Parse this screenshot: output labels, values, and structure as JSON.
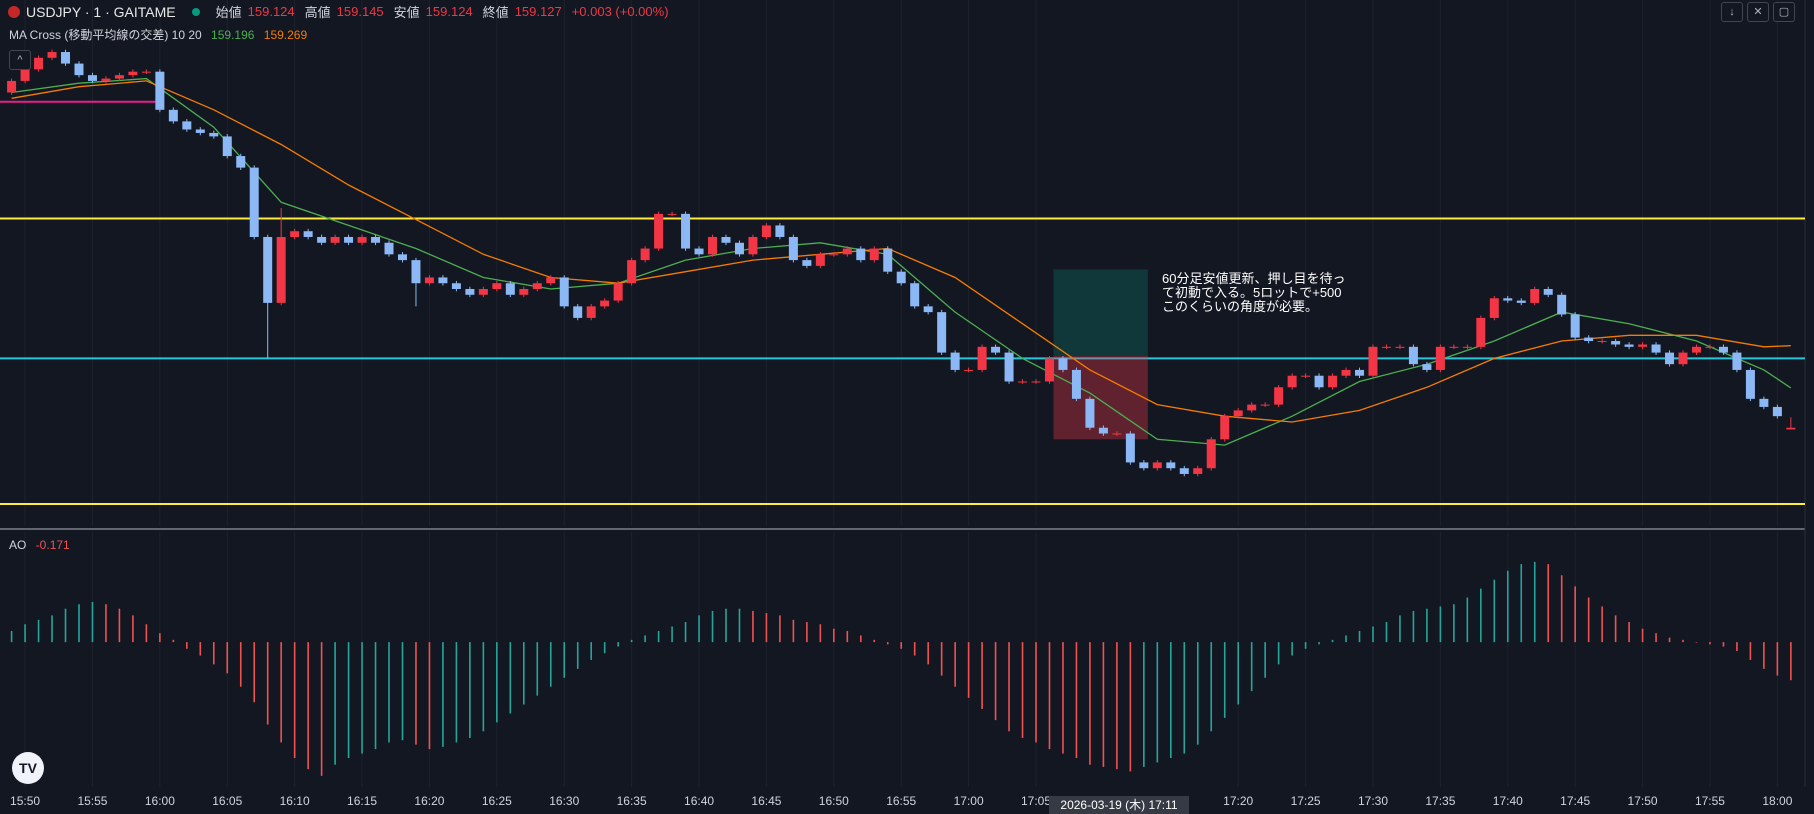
{
  "chart_data": [
    {
      "type": "candlestick",
      "title": "USDJPY · 1 · GAITAME",
      "ohlc_labels": [
        "始値",
        "高値",
        "安値",
        "終値"
      ],
      "change": "+0.003 (+0.00%)",
      "indicator": "MA Cross (移動平均線の交差) 10 20",
      "annotation": [
        "60分足安値更新、押し目を待っ",
        "て初動で入る。5ロットで+500",
        "このくらいの角度が必要。"
      ],
      "crosshair_label": "2026-03-19 (木)   17:11",
      "colors": {
        "up": "#f23645",
        "down": "#8cb8f5"
      },
      "xlim": [
        -0.86,
        133.05
      ],
      "ylim": [
        158.957,
        159.867
      ],
      "xticks": [
        {
          "value": 1,
          "label": "15:50"
        },
        {
          "value": 6,
          "label": "15:55"
        },
        {
          "value": 11,
          "label": "16:00"
        },
        {
          "value": 16,
          "label": "16:05"
        },
        {
          "value": 21,
          "label": "16:10"
        },
        {
          "value": 26,
          "label": "16:15"
        },
        {
          "value": 31,
          "label": "16:20"
        },
        {
          "value": 36,
          "label": "16:25"
        },
        {
          "value": 41,
          "label": "16:30"
        },
        {
          "value": 46,
          "label": "16:35"
        },
        {
          "value": 51,
          "label": "16:40"
        },
        {
          "value": 56,
          "label": "16:45"
        },
        {
          "value": 61,
          "label": "16:50"
        },
        {
          "value": 66,
          "label": "16:55"
        },
        {
          "value": 71,
          "label": "17:00"
        },
        {
          "value": 76,
          "label": "17:05"
        },
        {
          "value": 91,
          "label": "17:20"
        },
        {
          "value": 96,
          "label": "17:25"
        },
        {
          "value": 101,
          "label": "17:30"
        },
        {
          "value": 106,
          "label": "17:35"
        },
        {
          "value": 111,
          "label": "17:40"
        },
        {
          "value": 116,
          "label": "17:45"
        },
        {
          "value": 121,
          "label": "17:50"
        },
        {
          "value": 126,
          "label": "17:55"
        },
        {
          "value": 131,
          "label": "18:00"
        }
      ],
      "open": [
        159.707,
        159.727,
        159.747,
        159.767,
        159.777,
        159.757,
        159.737,
        159.727,
        159.731,
        159.737,
        159.743,
        159.743,
        159.677,
        159.657,
        159.643,
        159.637,
        159.631,
        159.597,
        159.577,
        159.457,
        159.343,
        159.457,
        159.467,
        159.457,
        159.447,
        159.457,
        159.447,
        159.457,
        159.447,
        159.427,
        159.417,
        159.377,
        159.387,
        159.377,
        159.367,
        159.357,
        159.367,
        159.377,
        159.357,
        159.367,
        159.377,
        159.387,
        159.337,
        159.317,
        159.337,
        159.347,
        159.377,
        159.417,
        159.437,
        159.497,
        159.497,
        159.437,
        159.427,
        159.457,
        159.447,
        159.427,
        159.457,
        159.477,
        159.457,
        159.417,
        159.407,
        159.427,
        159.427,
        159.437,
        159.417,
        159.437,
        159.397,
        159.377,
        159.337,
        159.327,
        159.257,
        159.227,
        159.227,
        159.267,
        159.257,
        159.207,
        159.207,
        159.207,
        159.247,
        159.227,
        159.177,
        159.127,
        159.117,
        159.117,
        159.067,
        159.057,
        159.067,
        159.057,
        159.047,
        159.057,
        159.107,
        159.147,
        159.157,
        159.167,
        159.167,
        159.197,
        159.217,
        159.217,
        159.197,
        159.217,
        159.227,
        159.217,
        159.267,
        159.267,
        159.267,
        159.237,
        159.227,
        159.267,
        159.267,
        159.267,
        159.317,
        159.351,
        159.347,
        159.343,
        159.367,
        159.357,
        159.323,
        159.283,
        159.277,
        159.277,
        159.271,
        159.267,
        159.271,
        159.257,
        159.237,
        159.257,
        159.267,
        159.267,
        159.257,
        159.227,
        159.177,
        159.163,
        159.124
      ],
      "high": [
        159.731,
        159.751,
        159.771,
        159.781,
        159.781,
        159.761,
        159.741,
        159.735,
        159.741,
        159.747,
        159.747,
        159.747,
        159.681,
        159.661,
        159.647,
        159.641,
        159.635,
        159.601,
        159.581,
        159.461,
        159.507,
        159.471,
        159.471,
        159.461,
        159.461,
        159.461,
        159.461,
        159.461,
        159.451,
        159.431,
        159.421,
        159.391,
        159.391,
        159.381,
        159.371,
        159.371,
        159.381,
        159.381,
        159.371,
        159.381,
        159.391,
        159.391,
        159.341,
        159.341,
        159.351,
        159.381,
        159.421,
        159.441,
        159.501,
        159.501,
        159.501,
        159.441,
        159.461,
        159.461,
        159.451,
        159.461,
        159.481,
        159.481,
        159.461,
        159.421,
        159.431,
        159.431,
        159.441,
        159.441,
        159.441,
        159.441,
        159.401,
        159.381,
        159.341,
        159.331,
        159.261,
        159.231,
        159.271,
        159.271,
        159.261,
        159.211,
        159.211,
        159.251,
        159.251,
        159.231,
        159.181,
        159.131,
        159.121,
        159.121,
        159.071,
        159.071,
        159.071,
        159.061,
        159.061,
        159.111,
        159.151,
        159.161,
        159.171,
        159.171,
        159.201,
        159.221,
        159.221,
        159.221,
        159.221,
        159.231,
        159.231,
        159.271,
        159.271,
        159.271,
        159.271,
        159.241,
        159.271,
        159.271,
        159.271,
        159.321,
        159.355,
        159.355,
        159.351,
        159.371,
        159.371,
        159.361,
        159.327,
        159.287,
        159.281,
        159.281,
        159.275,
        159.275,
        159.275,
        159.261,
        159.261,
        159.271,
        159.271,
        159.271,
        159.261,
        159.231,
        159.181,
        159.167,
        159.145
      ],
      "low": [
        159.703,
        159.723,
        159.743,
        159.763,
        159.753,
        159.733,
        159.723,
        159.723,
        159.727,
        159.733,
        159.739,
        159.673,
        159.653,
        159.639,
        159.633,
        159.627,
        159.593,
        159.573,
        159.453,
        159.247,
        159.339,
        159.453,
        159.453,
        159.443,
        159.443,
        159.443,
        159.443,
        159.443,
        159.423,
        159.413,
        159.337,
        159.373,
        159.373,
        159.363,
        159.353,
        159.353,
        159.363,
        159.353,
        159.353,
        159.363,
        159.373,
        159.333,
        159.313,
        159.313,
        159.333,
        159.343,
        159.373,
        159.413,
        159.433,
        159.493,
        159.433,
        159.423,
        159.423,
        159.443,
        159.423,
        159.423,
        159.453,
        159.453,
        159.413,
        159.403,
        159.403,
        159.423,
        159.423,
        159.413,
        159.413,
        159.393,
        159.373,
        159.333,
        159.323,
        159.253,
        159.223,
        159.223,
        159.223,
        159.253,
        159.203,
        159.203,
        159.203,
        159.203,
        159.223,
        159.173,
        159.123,
        159.113,
        159.113,
        159.063,
        159.053,
        159.053,
        159.053,
        159.043,
        159.043,
        159.053,
        159.103,
        159.143,
        159.153,
        159.163,
        159.163,
        159.193,
        159.213,
        159.193,
        159.193,
        159.213,
        159.213,
        159.213,
        159.263,
        159.263,
        159.233,
        159.223,
        159.223,
        159.263,
        159.263,
        159.263,
        159.313,
        159.343,
        159.339,
        159.339,
        159.353,
        159.319,
        159.279,
        159.273,
        159.273,
        159.267,
        159.263,
        159.263,
        159.253,
        159.233,
        159.233,
        159.253,
        159.263,
        159.253,
        159.223,
        159.173,
        159.159,
        159.143,
        159.124
      ],
      "close": [
        159.727,
        159.747,
        159.767,
        159.777,
        159.757,
        159.737,
        159.727,
        159.731,
        159.737,
        159.743,
        159.743,
        159.677,
        159.657,
        159.643,
        159.637,
        159.631,
        159.597,
        159.577,
        159.457,
        159.343,
        159.457,
        159.467,
        159.457,
        159.447,
        159.457,
        159.447,
        159.457,
        159.447,
        159.427,
        159.417,
        159.377,
        159.387,
        159.377,
        159.367,
        159.357,
        159.367,
        159.377,
        159.357,
        159.367,
        159.377,
        159.387,
        159.337,
        159.317,
        159.337,
        159.347,
        159.377,
        159.417,
        159.437,
        159.497,
        159.497,
        159.437,
        159.427,
        159.457,
        159.447,
        159.427,
        159.457,
        159.477,
        159.457,
        159.417,
        159.407,
        159.427,
        159.427,
        159.437,
        159.417,
        159.437,
        159.397,
        159.377,
        159.337,
        159.327,
        159.257,
        159.227,
        159.227,
        159.267,
        159.257,
        159.207,
        159.207,
        159.207,
        159.247,
        159.227,
        159.177,
        159.127,
        159.117,
        159.117,
        159.067,
        159.057,
        159.067,
        159.057,
        159.047,
        159.057,
        159.107,
        159.147,
        159.157,
        159.167,
        159.167,
        159.197,
        159.217,
        159.217,
        159.197,
        159.217,
        159.227,
        159.217,
        159.267,
        159.267,
        159.267,
        159.237,
        159.227,
        159.267,
        159.267,
        159.267,
        159.317,
        159.351,
        159.347,
        159.343,
        159.367,
        159.357,
        159.323,
        159.283,
        159.277,
        159.277,
        159.271,
        159.267,
        159.271,
        159.257,
        159.237,
        159.257,
        159.267,
        159.267,
        159.257,
        159.227,
        159.177,
        159.163,
        159.147,
        159.127
      ],
      "lines": [
        {
          "color": "#4caf50",
          "x": [
            0,
            5,
            10,
            15,
            20,
            25,
            30,
            35,
            40,
            45,
            50,
            55,
            60,
            65,
            70,
            75,
            80,
            85,
            90,
            95,
            100,
            105,
            110,
            115,
            120,
            125,
            130,
            132
          ],
          "values": [
            159.707,
            159.723,
            159.731,
            159.647,
            159.517,
            159.477,
            159.437,
            159.387,
            159.367,
            159.377,
            159.417,
            159.437,
            159.447,
            159.427,
            159.327,
            159.247,
            159.187,
            159.107,
            159.097,
            159.147,
            159.207,
            159.237,
            159.277,
            159.327,
            159.307,
            159.277,
            159.227,
            159.196
          ]
        },
        {
          "color": "#f57c00",
          "x": [
            0,
            5,
            10,
            15,
            20,
            25,
            30,
            35,
            40,
            45,
            50,
            55,
            60,
            65,
            70,
            75,
            80,
            85,
            90,
            95,
            100,
            105,
            110,
            115,
            120,
            125,
            130,
            132
          ],
          "values": [
            159.697,
            159.717,
            159.727,
            159.677,
            159.617,
            159.547,
            159.487,
            159.427,
            159.387,
            159.377,
            159.397,
            159.417,
            159.427,
            159.437,
            159.387,
            159.307,
            159.227,
            159.167,
            159.147,
            159.137,
            159.157,
            159.197,
            159.247,
            159.277,
            159.287,
            159.287,
            159.267,
            159.269
          ]
        }
      ],
      "hlines": [
        {
          "value": 159.489,
          "color": "#ffeb3b"
        },
        {
          "value": 158.995,
          "color": "#ffeb3b"
        },
        {
          "value": 159.247,
          "color": "#26c6da"
        },
        {
          "value": 159.691,
          "color": "#e91e8c",
          "x_end": 11
        }
      ],
      "position": {
        "start": 77.3,
        "end": 84.3,
        "entry": 159.251,
        "target": 159.401,
        "stop": 159.107
      }
    },
    {
      "type": "bar",
      "title": "AO",
      "colors": {
        "up": "#26a69a",
        "down": "#ef5350"
      },
      "ylim": [
        -0.65,
        0.494
      ],
      "values": [
        0.05,
        0.08,
        0.1,
        0.12,
        0.15,
        0.17,
        0.18,
        0.17,
        0.15,
        0.12,
        0.08,
        0.04,
        0.01,
        -0.03,
        -0.06,
        -0.1,
        -0.14,
        -0.2,
        -0.27,
        -0.37,
        -0.45,
        -0.52,
        -0.57,
        -0.6,
        -0.55,
        -0.52,
        -0.5,
        -0.48,
        -0.45,
        -0.44,
        -0.46,
        -0.48,
        -0.47,
        -0.45,
        -0.43,
        -0.4,
        -0.36,
        -0.32,
        -0.28,
        -0.24,
        -0.2,
        -0.16,
        -0.12,
        -0.08,
        -0.05,
        -0.02,
        0.01,
        0.03,
        0.05,
        0.07,
        0.09,
        0.12,
        0.14,
        0.15,
        0.15,
        0.14,
        0.13,
        0.12,
        0.1,
        0.09,
        0.08,
        0.06,
        0.05,
        0.03,
        0.01,
        -0.01,
        -0.03,
        -0.06,
        -0.1,
        -0.15,
        -0.2,
        -0.25,
        -0.3,
        -0.35,
        -0.4,
        -0.43,
        -0.45,
        -0.48,
        -0.5,
        -0.52,
        -0.55,
        -0.56,
        -0.57,
        -0.58,
        -0.56,
        -0.54,
        -0.52,
        -0.5,
        -0.46,
        -0.4,
        -0.34,
        -0.28,
        -0.22,
        -0.16,
        -0.1,
        -0.06,
        -0.03,
        -0.01,
        0.01,
        0.03,
        0.05,
        0.07,
        0.09,
        0.12,
        0.14,
        0.15,
        0.16,
        0.17,
        0.2,
        0.24,
        0.28,
        0.32,
        0.35,
        0.36,
        0.35,
        0.3,
        0.25,
        0.2,
        0.16,
        0.12,
        0.09,
        0.06,
        0.04,
        0.02,
        0.01,
        0,
        -0.01,
        -0.02,
        -0.04,
        -0.08,
        -0.12,
        -0.15,
        -0.171
      ]
    }
  ]
}
